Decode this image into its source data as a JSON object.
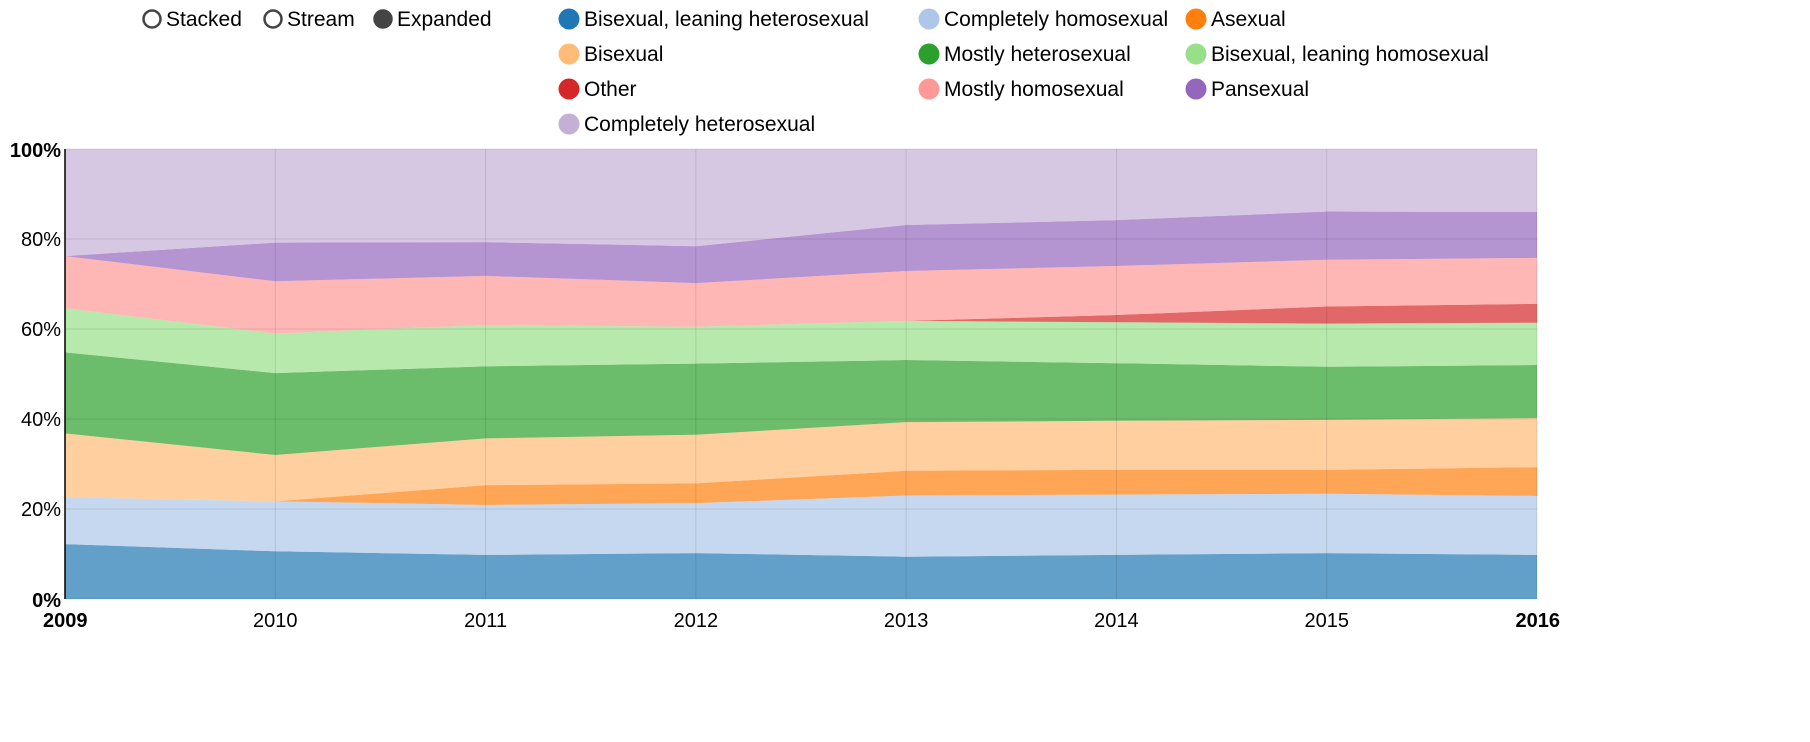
{
  "controls": {
    "options": [
      {
        "label": "Stacked",
        "selected": false
      },
      {
        "label": "Stream",
        "selected": false
      },
      {
        "label": "Expanded",
        "selected": true
      }
    ]
  },
  "chart_data": {
    "type": "area",
    "stacking": "expanded",
    "x": [
      2009,
      2010,
      2011,
      2012,
      2013,
      2014,
      2015,
      2016
    ],
    "x_tick_labels": [
      "2009",
      "2010",
      "2011",
      "2012",
      "2013",
      "2014",
      "2015",
      "2016"
    ],
    "y_ticks": [
      0,
      20,
      40,
      60,
      80,
      100
    ],
    "y_tick_labels": [
      "0%",
      "20%",
      "40%",
      "60%",
      "80%",
      "100%"
    ],
    "ylim": [
      0,
      100
    ],
    "grid": true,
    "legend_position": "top",
    "series": [
      {
        "name": "Bisexual, leaning heterosexual",
        "color": "#1f77b4",
        "values": [
          12.2,
          10.6,
          9.8,
          10.2,
          9.4,
          9.8,
          10.2,
          9.8
        ]
      },
      {
        "name": "Completely homosexual",
        "color": "#aec7e8",
        "values": [
          10.4,
          11.1,
          11.1,
          11.1,
          13.6,
          13.4,
          13.2,
          13.1
        ]
      },
      {
        "name": "Asexual",
        "color": "#ff7f0e",
        "values": [
          0,
          0,
          4.4,
          4.4,
          5.5,
          5.5,
          5.3,
          6.4
        ]
      },
      {
        "name": "Bisexual",
        "color": "#ffbb78",
        "values": [
          14.2,
          10.3,
          10.4,
          10.8,
          10.8,
          10.9,
          11.1,
          10.9
        ]
      },
      {
        "name": "Mostly heterosexual",
        "color": "#2ca02c",
        "values": [
          18.0,
          18.2,
          16.0,
          15.8,
          13.8,
          12.8,
          11.8,
          11.8
        ]
      },
      {
        "name": "Bisexual, leaning homosexual",
        "color": "#98df8a",
        "values": [
          9.8,
          8.8,
          9.2,
          8.2,
          8.7,
          9.1,
          9.6,
          9.4
        ]
      },
      {
        "name": "Other",
        "color": "#d62728",
        "values": [
          0,
          0,
          0,
          0,
          0,
          1.6,
          3.8,
          4.2
        ]
      },
      {
        "name": "Mostly homosexual",
        "color": "#ff9896",
        "values": [
          11.6,
          11.6,
          10.9,
          9.7,
          11.1,
          10.9,
          10.4,
          10.2
        ]
      },
      {
        "name": "Pansexual",
        "color": "#9467bd",
        "values": [
          0,
          8.6,
          7.5,
          8.2,
          10.2,
          10.2,
          10.7,
          10.2
        ]
      },
      {
        "name": "Completely heterosexual",
        "color": "#c5b0d5",
        "values": [
          23.8,
          20.8,
          20.7,
          21.6,
          16.9,
          15.8,
          13.9,
          14.0
        ]
      }
    ]
  }
}
